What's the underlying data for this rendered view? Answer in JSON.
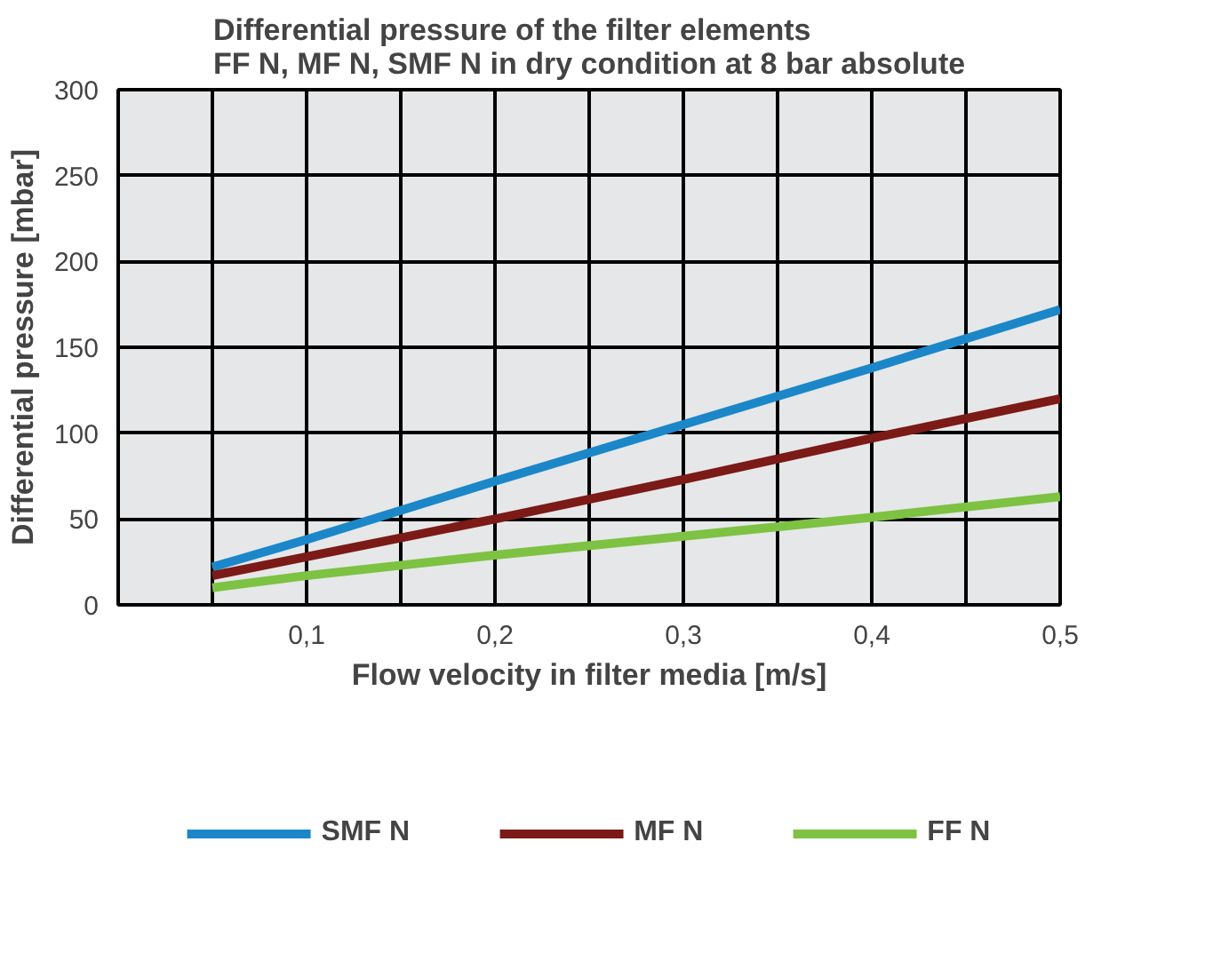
{
  "chart_data": {
    "type": "line",
    "title": "Differential pressure of the filter elements\nFF N, MF N, SMF N in dry condition at 8 bar absolute",
    "xlabel": "Flow velocity in filter media [m/s]",
    "ylabel": "Differential pressure [mbar]",
    "xlim": [
      0,
      0.5
    ],
    "ylim": [
      0,
      300
    ],
    "xticks": [
      {
        "value": 0.05,
        "label": null
      },
      {
        "value": 0.1,
        "label": "0,1"
      },
      {
        "value": 0.15,
        "label": null
      },
      {
        "value": 0.2,
        "label": "0,2"
      },
      {
        "value": 0.25,
        "label": null
      },
      {
        "value": 0.3,
        "label": "0,3"
      },
      {
        "value": 0.35,
        "label": null
      },
      {
        "value": 0.4,
        "label": "0,4"
      },
      {
        "value": 0.45,
        "label": null
      },
      {
        "value": 0.5,
        "label": "0,5"
      }
    ],
    "yticks": [
      0,
      50,
      100,
      150,
      200,
      250,
      300
    ],
    "x": [
      0.05,
      0.1,
      0.2,
      0.3,
      0.4,
      0.5
    ],
    "series": [
      {
        "name": "SMF N",
        "color": "#1b87c9",
        "values": [
          22,
          38,
          72,
          105,
          138,
          172
        ]
      },
      {
        "name": "MF N",
        "color": "#7b1a16",
        "values": [
          17,
          28,
          50,
          73,
          97,
          120
        ]
      },
      {
        "name": "FF N",
        "color": "#7dc242",
        "values": [
          10,
          17,
          29,
          40,
          51,
          63
        ]
      }
    ],
    "grid": true,
    "legend": "bottom",
    "line_style": "solid",
    "marker": "none"
  }
}
